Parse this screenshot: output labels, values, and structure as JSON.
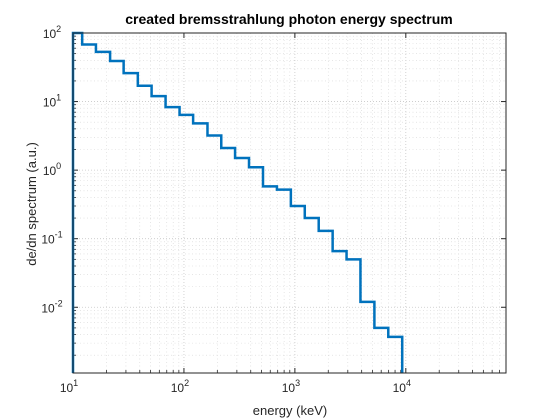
{
  "chart_data": {
    "type": "line",
    "title": "created bremsstrahlung photon energy spectrum",
    "xlabel": "energy (keV)",
    "ylabel": "de/dn spectrum (a.u.)",
    "xscale": "log",
    "yscale": "log",
    "xlim": [
      10,
      80000
    ],
    "ylim": [
      0.0011,
      100
    ],
    "grid": true,
    "minor_grid": true,
    "box": true,
    "line_color": "#0072BD",
    "x_ticks": [
      {
        "base": "10",
        "exp": "1",
        "value": 10
      },
      {
        "base": "10",
        "exp": "2",
        "value": 100
      },
      {
        "base": "10",
        "exp": "3",
        "value": 1000
      },
      {
        "base": "10",
        "exp": "4",
        "value": 10000
      }
    ],
    "y_ticks": [
      {
        "base": "10",
        "exp": "-2",
        "value": 0.01
      },
      {
        "base": "10",
        "exp": "-1",
        "value": 0.1
      },
      {
        "base": "10",
        "exp": "0",
        "value": 1
      },
      {
        "base": "10",
        "exp": "1",
        "value": 10
      },
      {
        "base": "10",
        "exp": "2",
        "value": 100
      }
    ],
    "stairs": {
      "edges": [
        10,
        12.1,
        16.1,
        21.6,
        28.6,
        38.4,
        51.1,
        68.3,
        91.3,
        121,
        163,
        217,
        289,
        386,
        516,
        689,
        920,
        1228,
        1640,
        2190,
        2923,
        3900,
        5210,
        6950,
        9280
      ],
      "values": [
        100,
        68,
        53,
        39,
        26,
        17,
        12,
        8.3,
        6.4,
        4.8,
        3.2,
        2.1,
        1.5,
        1.1,
        0.58,
        0.52,
        0.3,
        0.2,
        0.13,
        0.066,
        0.05,
        0.012,
        0.005,
        0.0037,
        0.0011
      ]
    }
  }
}
